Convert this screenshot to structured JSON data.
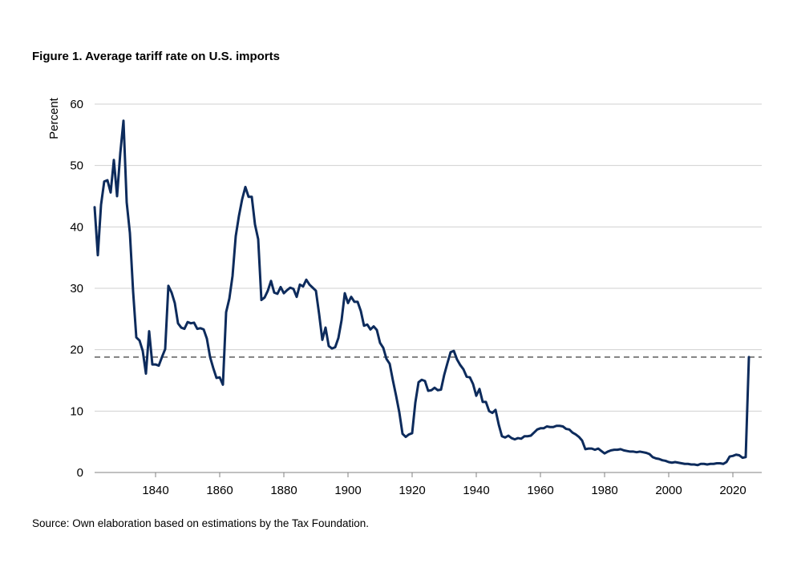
{
  "title": "Figure 1. Average tariff rate on U.S. imports",
  "source": "Source: Own elaboration based on estimations by the Tax Foundation.",
  "colors": {
    "line": "#0d2b5c",
    "reference": "#808080",
    "grid": "#d0d0d0",
    "axis": "#808080"
  },
  "chart_data": {
    "type": "line",
    "title": "Figure 1. Average tariff rate on U.S. imports",
    "xlabel": "",
    "ylabel": "Percent",
    "xlim": [
      1821,
      2029
    ],
    "ylim": [
      0,
      60
    ],
    "x_ticks": [
      1840,
      1860,
      1880,
      1900,
      1920,
      1940,
      1960,
      1980,
      2000,
      2020
    ],
    "y_ticks": [
      0,
      10,
      20,
      30,
      40,
      50,
      60
    ],
    "grid": "horizontal",
    "reference_line": {
      "y": 18.8,
      "style": "dashed"
    },
    "series": [
      {
        "x": [
          1821,
          1822,
          1823,
          1824,
          1825,
          1826,
          1827,
          1828,
          1829,
          1830,
          1831,
          1832,
          1833,
          1834,
          1835,
          1836,
          1837,
          1838,
          1839,
          1840,
          1841,
          1842,
          1843,
          1844,
          1845,
          1846,
          1847,
          1848,
          1849,
          1850,
          1851,
          1852,
          1853,
          1854,
          1855,
          1856,
          1857,
          1858,
          1859,
          1860,
          1861,
          1862,
          1863,
          1864,
          1865,
          1866,
          1867,
          1868,
          1869,
          1870,
          1871,
          1872,
          1873,
          1874,
          1875,
          1876,
          1877,
          1878,
          1879,
          1880,
          1881,
          1882,
          1883,
          1884,
          1885,
          1886,
          1887,
          1888,
          1889,
          1890,
          1891,
          1892,
          1893,
          1894,
          1895,
          1896,
          1897,
          1898,
          1899,
          1900,
          1901,
          1902,
          1903,
          1904,
          1905,
          1906,
          1907,
          1908,
          1909,
          1910,
          1911,
          1912,
          1913,
          1914,
          1915,
          1916,
          1917,
          1918,
          1919,
          1920,
          1921,
          1922,
          1923,
          1924,
          1925,
          1926,
          1927,
          1928,
          1929,
          1930,
          1931,
          1932,
          1933,
          1934,
          1935,
          1936,
          1937,
          1938,
          1939,
          1940,
          1941,
          1942,
          1943,
          1944,
          1945,
          1946,
          1947,
          1948,
          1949,
          1950,
          1951,
          1952,
          1953,
          1954,
          1955,
          1956,
          1957,
          1958,
          1959,
          1960,
          1961,
          1962,
          1963,
          1964,
          1965,
          1966,
          1967,
          1968,
          1969,
          1970,
          1971,
          1972,
          1973,
          1974,
          1975,
          1976,
          1977,
          1978,
          1979,
          1980,
          1981,
          1982,
          1983,
          1984,
          1985,
          1986,
          1987,
          1988,
          1989,
          1990,
          1991,
          1992,
          1993,
          1994,
          1995,
          1996,
          1997,
          1998,
          1999,
          2000,
          2001,
          2002,
          2003,
          2004,
          2005,
          2006,
          2007,
          2008,
          2009,
          2010,
          2011,
          2012,
          2013,
          2014,
          2015,
          2016,
          2017,
          2018,
          2019,
          2020,
          2021,
          2022,
          2023,
          2024,
          2025
        ],
        "values": [
          43.2,
          35.4,
          43.6,
          47.4,
          47.6,
          45.6,
          50.9,
          45.0,
          52.0,
          57.3,
          44.0,
          39.0,
          29.5,
          22.0,
          21.5,
          19.8,
          16.1,
          23.0,
          17.6,
          17.6,
          17.4,
          18.8,
          20.1,
          30.4,
          29.3,
          27.6,
          24.3,
          23.6,
          23.4,
          24.5,
          24.3,
          24.4,
          23.4,
          23.5,
          23.3,
          21.8,
          18.8,
          17.0,
          15.4,
          15.5,
          14.3,
          26.1,
          28.3,
          32.0,
          38.5,
          41.8,
          44.5,
          46.5,
          44.9,
          44.9,
          40.4,
          38.0,
          28.1,
          28.5,
          29.6,
          31.2,
          29.3,
          29.1,
          30.2,
          29.2,
          29.7,
          30.1,
          29.9,
          28.6,
          30.6,
          30.3,
          31.4,
          30.6,
          30.1,
          29.6,
          25.8,
          21.6,
          23.6,
          20.6,
          20.2,
          20.4,
          21.9,
          24.8,
          29.2,
          27.6,
          28.6,
          27.8,
          27.8,
          26.3,
          23.9,
          24.1,
          23.3,
          23.8,
          23.2,
          21.1,
          20.3,
          18.5,
          17.7,
          15.0,
          12.5,
          9.8,
          6.3,
          5.8,
          6.2,
          6.4,
          11.4,
          14.7,
          15.1,
          14.9,
          13.3,
          13.4,
          13.8,
          13.4,
          13.5,
          15.9,
          17.8,
          19.6,
          19.8,
          18.4,
          17.5,
          16.8,
          15.6,
          15.5,
          14.4,
          12.5,
          13.6,
          11.5,
          11.5,
          10.0,
          9.7,
          10.2,
          7.8,
          5.9,
          5.7,
          6.0,
          5.6,
          5.4,
          5.6,
          5.5,
          5.9,
          5.9,
          6.0,
          6.5,
          7.0,
          7.2,
          7.2,
          7.5,
          7.4,
          7.4,
          7.6,
          7.6,
          7.5,
          7.1,
          7.0,
          6.5,
          6.2,
          5.8,
          5.2,
          3.8,
          3.9,
          3.9,
          3.7,
          3.9,
          3.5,
          3.1,
          3.4,
          3.6,
          3.7,
          3.7,
          3.8,
          3.6,
          3.5,
          3.4,
          3.4,
          3.3,
          3.4,
          3.3,
          3.2,
          3.0,
          2.5,
          2.3,
          2.2,
          2.0,
          1.9,
          1.7,
          1.6,
          1.7,
          1.6,
          1.5,
          1.4,
          1.4,
          1.3,
          1.3,
          1.2,
          1.4,
          1.4,
          1.3,
          1.4,
          1.4,
          1.5,
          1.5,
          1.4,
          1.7,
          2.6,
          2.7,
          2.9,
          2.8,
          2.4,
          2.5,
          18.8
        ]
      }
    ]
  }
}
